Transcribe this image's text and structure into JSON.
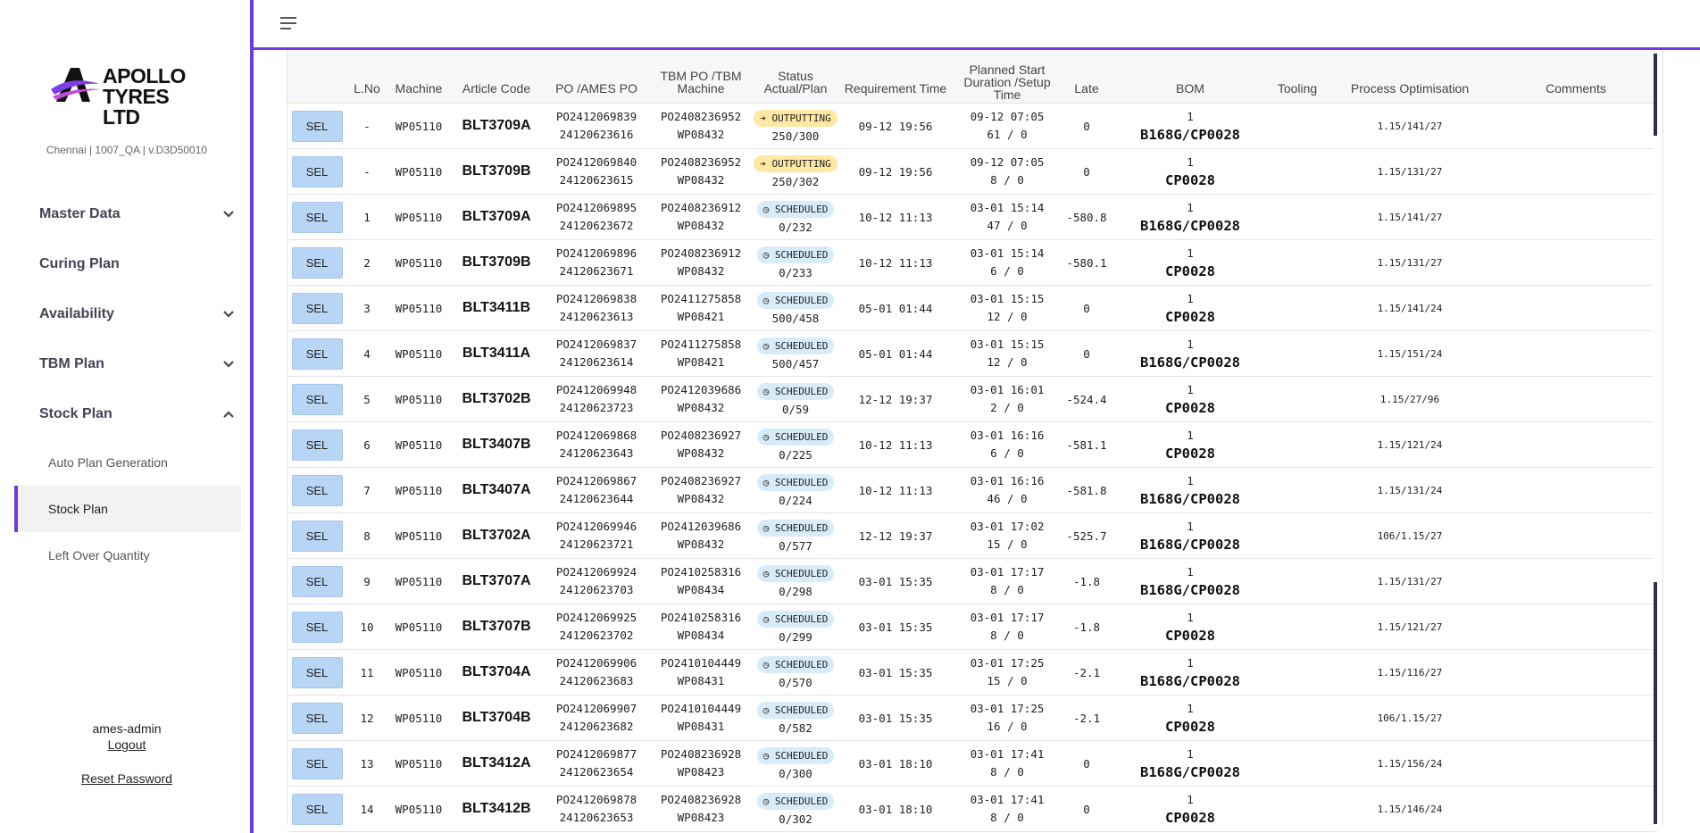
{
  "brand": {
    "name_line1": "APOLLO",
    "name_line2": "TYRES LTD",
    "subline": "Chennai | 1007_QA | v.D3D50010"
  },
  "nav": {
    "items": [
      {
        "label": "Master Data",
        "chevron": "chevron-down-icon"
      },
      {
        "label": "Curing Plan"
      },
      {
        "label": "Availability",
        "chevron": "chevron-down-icon"
      },
      {
        "label": "TBM Plan",
        "chevron": "chevron-down-icon"
      },
      {
        "label": "Stock Plan",
        "chevron": "chevron-up-icon"
      }
    ],
    "sub_items": [
      {
        "label": "Auto Plan Generation"
      },
      {
        "label": "Stock Plan",
        "active": true
      },
      {
        "label": "Left Over Quantity"
      }
    ]
  },
  "user": {
    "name": "ames-admin",
    "logout": "Logout",
    "reset": "Reset Password"
  },
  "table": {
    "headers": [
      "",
      "L.No",
      "Machine",
      "Article Code",
      "PO /AMES PO",
      "TBM PO /TBM Machine",
      "Status Actual/Plan",
      "Requirement Time",
      "Planned Start Duration /Setup Time",
      "Late",
      "BOM",
      "Tooling",
      "Process Optimisation",
      "Comments"
    ],
    "sel_label": "SEL",
    "rows": [
      {
        "lno": "-",
        "machine": "WP05110",
        "article": "BLT3709A",
        "po": "PO2412069839",
        "ames_po": "24120623616",
        "tbm_po": "PO2408236952",
        "tbm_machine": "WP08432",
        "status": "OUTPUTTING",
        "qty": "250/300",
        "req": "09-12 19:56",
        "start": "09-12 07:05",
        "dur": "61 / 0",
        "late": "0",
        "bom_qty": "1",
        "bom_code": "B168G/CP0028",
        "popt": "1.15/141/27"
      },
      {
        "lno": "-",
        "machine": "WP05110",
        "article": "BLT3709B",
        "po": "PO2412069840",
        "ames_po": "24120623615",
        "tbm_po": "PO2408236952",
        "tbm_machine": "WP08432",
        "status": "OUTPUTTING",
        "qty": "250/302",
        "req": "09-12 19:56",
        "start": "09-12 07:05",
        "dur": "8 / 0",
        "late": "0",
        "bom_qty": "1",
        "bom_code": "CP0028",
        "popt": "1.15/131/27"
      },
      {
        "lno": "1",
        "machine": "WP05110",
        "article": "BLT3709A",
        "po": "PO2412069895",
        "ames_po": "24120623672",
        "tbm_po": "PO2408236912",
        "tbm_machine": "WP08432",
        "status": "SCHEDULED",
        "qty": "0/232",
        "req": "10-12 11:13",
        "start": "03-01 15:14",
        "dur": "47 / 0",
        "late": "-580.8",
        "bom_qty": "1",
        "bom_code": "B168G/CP0028",
        "popt": "1.15/141/27"
      },
      {
        "lno": "2",
        "machine": "WP05110",
        "article": "BLT3709B",
        "po": "PO2412069896",
        "ames_po": "24120623671",
        "tbm_po": "PO2408236912",
        "tbm_machine": "WP08432",
        "status": "SCHEDULED",
        "qty": "0/233",
        "req": "10-12 11:13",
        "start": "03-01 15:14",
        "dur": "6 / 0",
        "late": "-580.1",
        "bom_qty": "1",
        "bom_code": "CP0028",
        "popt": "1.15/131/27"
      },
      {
        "lno": "3",
        "machine": "WP05110",
        "article": "BLT3411B",
        "po": "PO2412069838",
        "ames_po": "24120623613",
        "tbm_po": "PO2411275858",
        "tbm_machine": "WP08421",
        "status": "SCHEDULED",
        "qty": "500/458",
        "req": "05-01 01:44",
        "start": "03-01 15:15",
        "dur": "12 / 0",
        "late": "0",
        "bom_qty": "1",
        "bom_code": "CP0028",
        "popt": "1.15/141/24"
      },
      {
        "lno": "4",
        "machine": "WP05110",
        "article": "BLT3411A",
        "po": "PO2412069837",
        "ames_po": "24120623614",
        "tbm_po": "PO2411275858",
        "tbm_machine": "WP08421",
        "status": "SCHEDULED",
        "qty": "500/457",
        "req": "05-01 01:44",
        "start": "03-01 15:15",
        "dur": "12 / 0",
        "late": "0",
        "bom_qty": "1",
        "bom_code": "B168G/CP0028",
        "popt": "1.15/151/24"
      },
      {
        "lno": "5",
        "machine": "WP05110",
        "article": "BLT3702B",
        "po": "PO2412069948",
        "ames_po": "24120623723",
        "tbm_po": "PO2412039686",
        "tbm_machine": "WP08432",
        "status": "SCHEDULED",
        "qty": "0/59",
        "req": "12-12 19:37",
        "start": "03-01 16:01",
        "dur": "2 / 0",
        "late": "-524.4",
        "bom_qty": "1",
        "bom_code": "CP0028",
        "popt": "1.15/27/96"
      },
      {
        "lno": "6",
        "machine": "WP05110",
        "article": "BLT3407B",
        "po": "PO2412069868",
        "ames_po": "24120623643",
        "tbm_po": "PO2408236927",
        "tbm_machine": "WP08432",
        "status": "SCHEDULED",
        "qty": "0/225",
        "req": "10-12 11:13",
        "start": "03-01 16:16",
        "dur": "6 / 0",
        "late": "-581.1",
        "bom_qty": "1",
        "bom_code": "CP0028",
        "popt": "1.15/121/24"
      },
      {
        "lno": "7",
        "machine": "WP05110",
        "article": "BLT3407A",
        "po": "PO2412069867",
        "ames_po": "24120623644",
        "tbm_po": "PO2408236927",
        "tbm_machine": "WP08432",
        "status": "SCHEDULED",
        "qty": "0/224",
        "req": "10-12 11:13",
        "start": "03-01 16:16",
        "dur": "46 / 0",
        "late": "-581.8",
        "bom_qty": "1",
        "bom_code": "B168G/CP0028",
        "popt": "1.15/131/24"
      },
      {
        "lno": "8",
        "machine": "WP05110",
        "article": "BLT3702A",
        "po": "PO2412069946",
        "ames_po": "24120623721",
        "tbm_po": "PO2412039686",
        "tbm_machine": "WP08432",
        "status": "SCHEDULED",
        "qty": "0/577",
        "req": "12-12 19:37",
        "start": "03-01 17:02",
        "dur": "15 / 0",
        "late": "-525.7",
        "bom_qty": "1",
        "bom_code": "B168G/CP0028",
        "popt": "106/1.15/27"
      },
      {
        "lno": "9",
        "machine": "WP05110",
        "article": "BLT3707A",
        "po": "PO2412069924",
        "ames_po": "24120623703",
        "tbm_po": "PO2410258316",
        "tbm_machine": "WP08434",
        "status": "SCHEDULED",
        "qty": "0/298",
        "req": "03-01 15:35",
        "start": "03-01 17:17",
        "dur": "8 / 0",
        "late": "-1.8",
        "bom_qty": "1",
        "bom_code": "B168G/CP0028",
        "popt": "1.15/131/27"
      },
      {
        "lno": "10",
        "machine": "WP05110",
        "article": "BLT3707B",
        "po": "PO2412069925",
        "ames_po": "24120623702",
        "tbm_po": "PO2410258316",
        "tbm_machine": "WP08434",
        "status": "SCHEDULED",
        "qty": "0/299",
        "req": "03-01 15:35",
        "start": "03-01 17:17",
        "dur": "8 / 0",
        "late": "-1.8",
        "bom_qty": "1",
        "bom_code": "CP0028",
        "popt": "1.15/121/27"
      },
      {
        "lno": "11",
        "machine": "WP05110",
        "article": "BLT3704A",
        "po": "PO2412069906",
        "ames_po": "24120623683",
        "tbm_po": "PO2410104449",
        "tbm_machine": "WP08431",
        "status": "SCHEDULED",
        "qty": "0/570",
        "req": "03-01 15:35",
        "start": "03-01 17:25",
        "dur": "15 / 0",
        "late": "-2.1",
        "bom_qty": "1",
        "bom_code": "B168G/CP0028",
        "popt": "1.15/116/27"
      },
      {
        "lno": "12",
        "machine": "WP05110",
        "article": "BLT3704B",
        "po": "PO2412069907",
        "ames_po": "24120623682",
        "tbm_po": "PO2410104449",
        "tbm_machine": "WP08431",
        "status": "SCHEDULED",
        "qty": "0/582",
        "req": "03-01 15:35",
        "start": "03-01 17:25",
        "dur": "16 / 0",
        "late": "-2.1",
        "bom_qty": "1",
        "bom_code": "CP0028",
        "popt": "106/1.15/27"
      },
      {
        "lno": "13",
        "machine": "WP05110",
        "article": "BLT3412A",
        "po": "PO2412069877",
        "ames_po": "24120623654",
        "tbm_po": "PO2408236928",
        "tbm_machine": "WP08423",
        "status": "SCHEDULED",
        "qty": "0/300",
        "req": "03-01 18:10",
        "start": "03-01 17:41",
        "dur": "8 / 0",
        "late": "0",
        "bom_qty": "1",
        "bom_code": "B168G/CP0028",
        "popt": "1.15/156/24"
      },
      {
        "lno": "14",
        "machine": "WP05110",
        "article": "BLT3412B",
        "po": "PO2412069878",
        "ames_po": "24120623653",
        "tbm_po": "PO2408236928",
        "tbm_machine": "WP08423",
        "status": "SCHEDULED",
        "qty": "0/302",
        "req": "03-01 18:10",
        "start": "03-01 17:41",
        "dur": "8 / 0",
        "late": "0",
        "bom_qty": "1",
        "bom_code": "CP0028",
        "popt": "1.15/146/24"
      }
    ]
  },
  "colors": {
    "accent": "#6f3be0",
    "sel_button": "#b9d5f5",
    "outputting_badge": "#ffe8a3",
    "scheduled_badge": "#d8ebf8",
    "scrollbar": "#2d3040"
  }
}
